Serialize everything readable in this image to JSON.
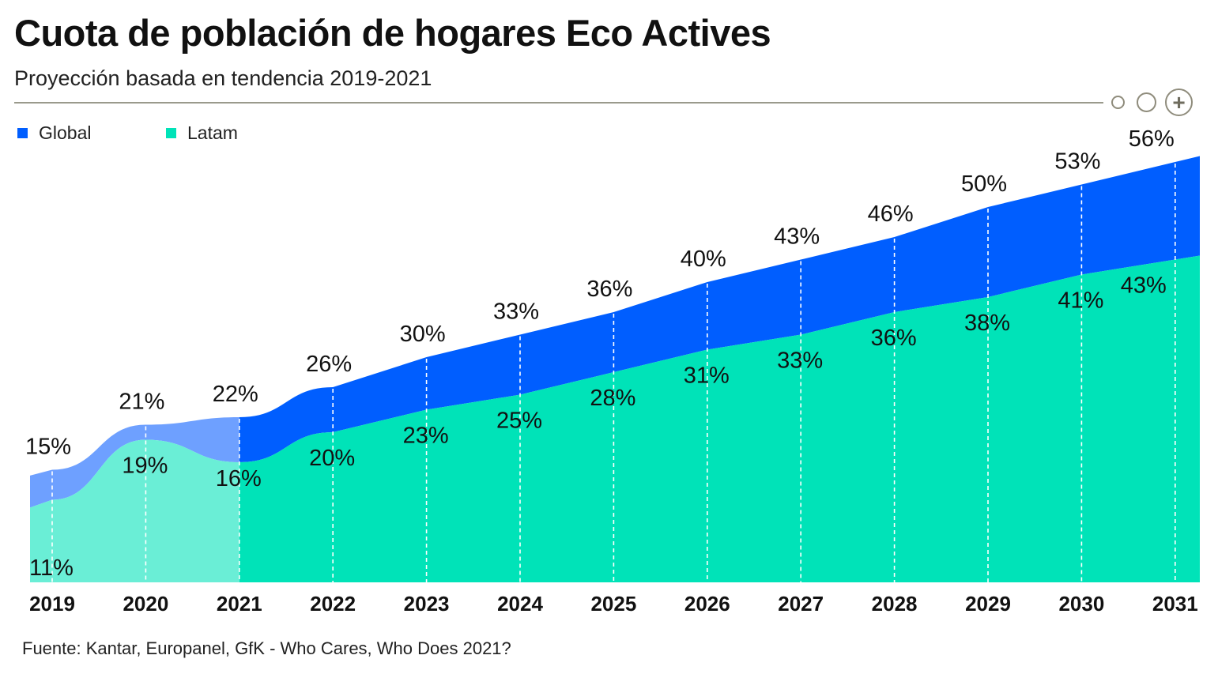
{
  "header": {
    "title": "Cuota de población de hogares Eco Actives",
    "subtitle": "Proyección basada en tendencia 2019-2021"
  },
  "controls": [
    {
      "icon": "circle-small-icon"
    },
    {
      "icon": "circle-icon"
    },
    {
      "icon": "plus-icon",
      "symbol": "+"
    }
  ],
  "colors": {
    "global_projection": "#005eff",
    "global_historical": "#6ea0ff",
    "latam_projection": "#00e3b8",
    "latam_historical": "#6aeed6"
  },
  "chart_data": {
    "type": "area",
    "x": [
      "2019",
      "2020",
      "2021",
      "2022",
      "2023",
      "2024",
      "2025",
      "2026",
      "2027",
      "2028",
      "2029",
      "2030",
      "2031"
    ],
    "ylim": [
      0,
      60
    ],
    "grid": "dashed vertical lines per year",
    "legend_position": "top-left",
    "historical_range": [
      "2019",
      "2021"
    ],
    "series": [
      {
        "name": "Global",
        "values": [
          15,
          21,
          22,
          26,
          30,
          33,
          36,
          40,
          43,
          46,
          50,
          53,
          56
        ],
        "labels": [
          "15%",
          "21%",
          "22%",
          "26%",
          "30%",
          "33%",
          "36%",
          "40%",
          "43%",
          "46%",
          "50%",
          "53%",
          "56%"
        ]
      },
      {
        "name": "Latam",
        "values": [
          11,
          19,
          16,
          20,
          23,
          25,
          28,
          31,
          33,
          36,
          38,
          41,
          43
        ],
        "labels": [
          "11%",
          "19%",
          "16%",
          "20%",
          "23%",
          "25%",
          "28%",
          "31%",
          "33%",
          "36%",
          "38%",
          "41%",
          "43%"
        ]
      }
    ]
  },
  "footer": {
    "source": "Fuente: Kantar, Europanel, GfK - Who Cares, Who Does 2021?"
  }
}
